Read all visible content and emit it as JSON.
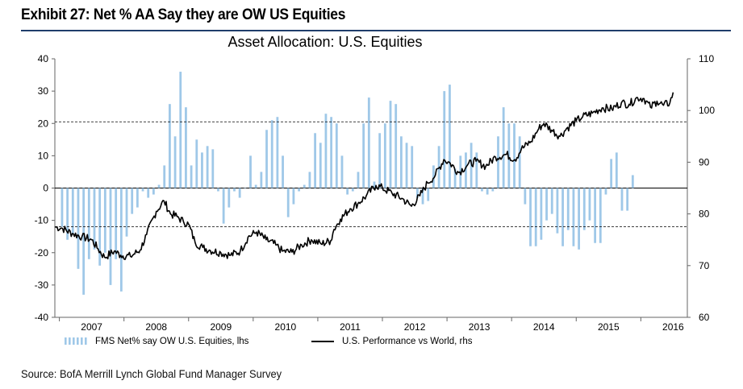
{
  "header": {
    "exhibit_title": "Exhibit 27: Net % AA Say they are OW US Equities"
  },
  "footer": {
    "source": "Source: BofA Merrill Lynch Global Fund Manager Survey"
  },
  "colors": {
    "bars": "#9fc8e8",
    "line": "#000000",
    "title_rule": "#1f3d6b"
  },
  "chart_data": {
    "type": "bar",
    "title": "Asset Allocation: U.S. Equities",
    "y_left": {
      "ylim": [
        -40,
        40
      ],
      "ticks": [
        -40,
        -30,
        -20,
        -10,
        0,
        10,
        20,
        30,
        40
      ],
      "labels": [
        "-40",
        "-30",
        "-20",
        "-10",
        "0",
        "10",
        "20",
        "30",
        "40"
      ]
    },
    "y_right": {
      "ylim": [
        60,
        110
      ],
      "ticks": [
        60,
        70,
        80,
        90,
        100,
        110
      ],
      "labels": [
        "60",
        "70",
        "80",
        "90",
        "100",
        "110"
      ]
    },
    "x_range": [
      2006.93,
      2016.72
    ],
    "x_tick_labels": [
      {
        "label": "2007",
        "year": 2007.5
      },
      {
        "label": "2008",
        "year": 2008.5
      },
      {
        "label": "2009",
        "year": 2009.5
      },
      {
        "label": "2010",
        "year": 2010.5
      },
      {
        "label": "2011",
        "year": 2011.5
      },
      {
        "label": "2012",
        "year": 2012.5
      },
      {
        "label": "2013",
        "year": 2013.5
      },
      {
        "label": "2014",
        "year": 2014.5
      },
      {
        "label": "2015",
        "year": 2015.5
      },
      {
        "label": "2016",
        "year": 2016.5
      }
    ],
    "reference_lines_left_axis": [
      20.5,
      -12
    ],
    "grid": false,
    "legend": {
      "placement": "bottom",
      "bar_label": "FMS Net% say OW U.S. Equities, lhs",
      "line_label": "U.S. Performance vs World, rhs"
    },
    "series": [
      {
        "name": "FMS Net% say OW U.S. Equities, lhs",
        "type": "bar",
        "axis": "left",
        "start": "2007-01",
        "values": [
          -12,
          -16,
          -14,
          -25,
          -33,
          -22,
          -19,
          -24,
          -20,
          -30,
          -22,
          -32,
          -15,
          -8,
          -6,
          -1,
          -3,
          -2,
          1,
          7,
          26,
          16,
          36,
          25,
          7,
          15,
          11,
          13,
          12,
          -1,
          -11,
          -6,
          -1,
          -3,
          0,
          10,
          1,
          5,
          18,
          21,
          22,
          10,
          -9,
          -5,
          -1,
          1,
          5,
          17,
          14,
          23,
          22,
          20,
          10,
          -2,
          -1,
          5,
          20,
          28,
          2,
          17,
          20,
          27,
          26,
          16,
          14,
          13,
          -3,
          -5,
          -4,
          7,
          13,
          30,
          32,
          6,
          10,
          11,
          14,
          11,
          -1,
          -2,
          -1,
          16,
          25,
          20,
          20,
          16,
          -5,
          -18,
          -18,
          -16,
          -10,
          -8,
          -14,
          -18,
          -13,
          -18,
          -19,
          -13,
          -10,
          -17,
          -17,
          -2,
          9,
          11,
          -7,
          -7,
          4
        ]
      },
      {
        "name": "U.S. Performance vs World, rhs",
        "type": "line",
        "axis": "right",
        "points": [
          [
            2006.93,
            77.5
          ],
          [
            2007.05,
            77.2
          ],
          [
            2007.2,
            76.2
          ],
          [
            2007.35,
            75.6
          ],
          [
            2007.5,
            75.0
          ],
          [
            2007.6,
            73.2
          ],
          [
            2007.7,
            71.6
          ],
          [
            2007.85,
            72.8
          ],
          [
            2007.95,
            72.0
          ],
          [
            2008.1,
            71.8
          ],
          [
            2008.25,
            73.0
          ],
          [
            2008.35,
            76.0
          ],
          [
            2008.5,
            80.5
          ],
          [
            2008.62,
            82.5
          ],
          [
            2008.72,
            80.0
          ],
          [
            2008.82,
            79.5
          ],
          [
            2008.92,
            78.5
          ],
          [
            2009.0,
            78.0
          ],
          [
            2009.1,
            74.5
          ],
          [
            2009.22,
            73.5
          ],
          [
            2009.32,
            73.0
          ],
          [
            2009.5,
            72.5
          ],
          [
            2009.65,
            72.0
          ],
          [
            2009.8,
            72.8
          ],
          [
            2009.92,
            75.5
          ],
          [
            2010.05,
            76.5
          ],
          [
            2010.2,
            75.0
          ],
          [
            2010.35,
            74.0
          ],
          [
            2010.45,
            72.8
          ],
          [
            2010.6,
            72.6
          ],
          [
            2010.75,
            74.0
          ],
          [
            2010.9,
            75.0
          ],
          [
            2011.05,
            74.2
          ],
          [
            2011.2,
            74.8
          ],
          [
            2011.25,
            77.0
          ],
          [
            2011.35,
            79.0
          ],
          [
            2011.5,
            81.0
          ],
          [
            2011.62,
            82.0
          ],
          [
            2011.75,
            83.5
          ],
          [
            2011.9,
            85.5
          ],
          [
            2012.0,
            85.0
          ],
          [
            2012.15,
            84.0
          ],
          [
            2012.3,
            83.0
          ],
          [
            2012.45,
            81.5
          ],
          [
            2012.58,
            83.5
          ],
          [
            2012.7,
            86.0
          ],
          [
            2012.82,
            87.5
          ],
          [
            2012.95,
            90.5
          ],
          [
            2013.05,
            89.8
          ],
          [
            2013.18,
            88.0
          ],
          [
            2013.32,
            89.5
          ],
          [
            2013.45,
            90.2
          ],
          [
            2013.6,
            89.2
          ],
          [
            2013.75,
            91.0
          ],
          [
            2013.92,
            91.5
          ],
          [
            2014.05,
            90.5
          ],
          [
            2014.15,
            92.5
          ],
          [
            2014.3,
            94.0
          ],
          [
            2014.42,
            96.5
          ],
          [
            2014.5,
            97.5
          ],
          [
            2014.62,
            96.2
          ],
          [
            2014.75,
            95.0
          ],
          [
            2014.85,
            96.5
          ],
          [
            2015.0,
            98.0
          ],
          [
            2015.1,
            98.8
          ],
          [
            2015.25,
            99.5
          ],
          [
            2015.4,
            100.5
          ],
          [
            2015.55,
            100.3
          ],
          [
            2015.7,
            101.5
          ],
          [
            2015.82,
            101.2
          ],
          [
            2015.95,
            102.5
          ],
          [
            2016.05,
            102.3
          ],
          [
            2016.15,
            100.6
          ],
          [
            2016.25,
            101.8
          ],
          [
            2016.35,
            101.0
          ],
          [
            2016.45,
            101.5
          ],
          [
            2016.5,
            103.5
          ]
        ]
      }
    ]
  }
}
